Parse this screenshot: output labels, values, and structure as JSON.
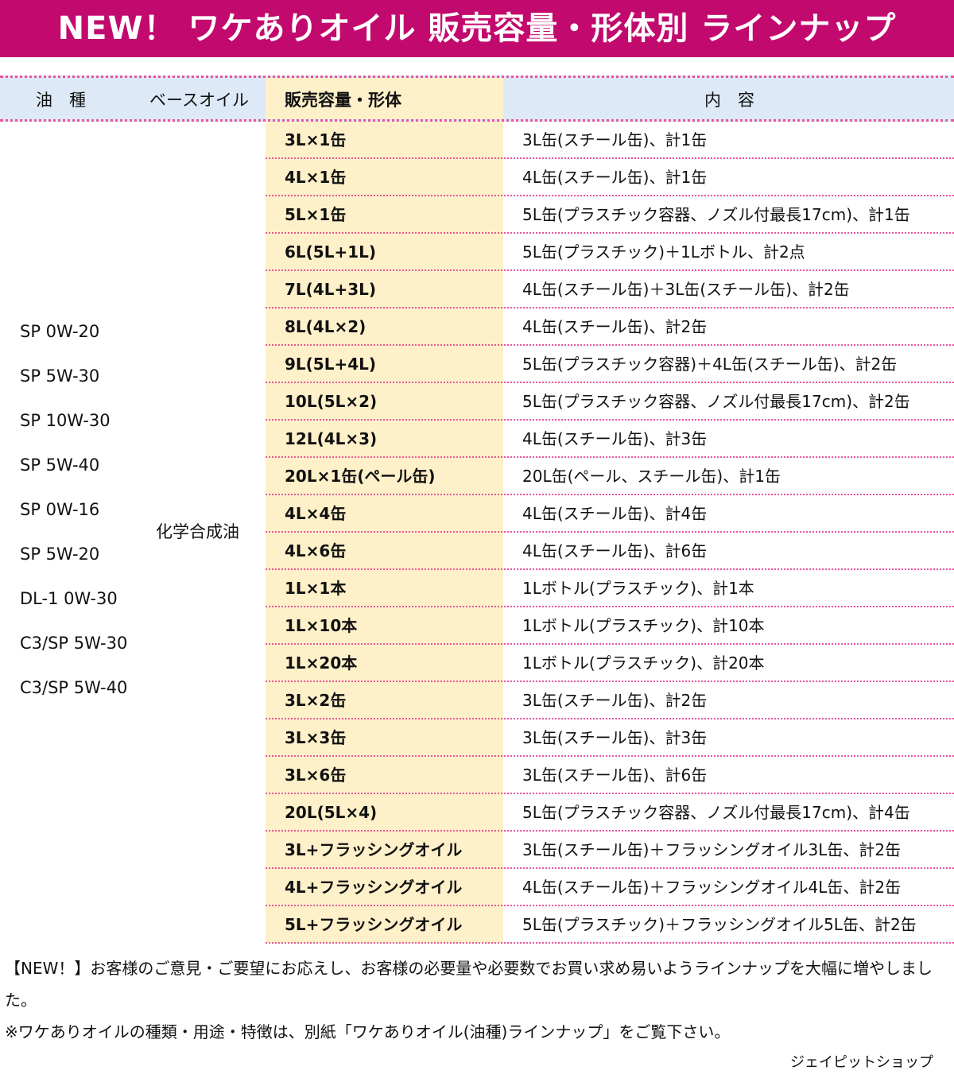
{
  "title": "NEW！ ワケありオイル 販売容量・形体別 ラインナップ",
  "headers": {
    "oil_type": "油　種",
    "base_oil": "ベースオイル",
    "capacity": "販売容量・形体",
    "contents": "内　容"
  },
  "oil_types": [
    "SP 0W-20",
    "SP 5W-30",
    "SP 10W-30",
    "SP 5W-40",
    "SP 0W-16",
    "SP 5W-20",
    "DL-1 0W-30",
    "C3/SP 5W-30",
    "C3/SP 5W-40"
  ],
  "base_oil": "化学合成油",
  "rows": [
    {
      "cap": "3L×1缶",
      "desc": "3L缶(スチール缶)、計1缶"
    },
    {
      "cap": "4L×1缶",
      "desc": "4L缶(スチール缶)、計1缶"
    },
    {
      "cap": "5L×1缶",
      "desc": "5L缶(プラスチック容器、ノズル付最長17cm)、計1缶"
    },
    {
      "cap": "6L(5L+1L)",
      "desc": "5L缶(プラスチック)＋1Lボトル、計2点"
    },
    {
      "cap": "7L(4L+3L)",
      "desc": "4L缶(スチール缶)＋3L缶(スチール缶)、計2缶"
    },
    {
      "cap": "8L(4L×2)",
      "desc": "4L缶(スチール缶)、計2缶"
    },
    {
      "cap": "9L(5L+4L)",
      "desc": "5L缶(プラスチック容器)＋4L缶(スチール缶)、計2缶"
    },
    {
      "cap": "10L(5L×2)",
      "desc": "5L缶(プラスチック容器、ノズル付最長17cm)、計2缶"
    },
    {
      "cap": "12L(4L×3)",
      "desc": "4L缶(スチール缶)、計3缶"
    },
    {
      "cap": "20L×1缶(ペール缶)",
      "desc": "20L缶(ペール、スチール缶)、計1缶"
    },
    {
      "cap": "4L×4缶",
      "desc": "4L缶(スチール缶)、計4缶"
    },
    {
      "cap": "4L×6缶",
      "desc": "4L缶(スチール缶)、計6缶"
    },
    {
      "cap": "1L×1本",
      "desc": "1Lボトル(プラスチック)、計1本"
    },
    {
      "cap": "1L×10本",
      "desc": "1Lボトル(プラスチック)、計10本"
    },
    {
      "cap": "1L×20本",
      "desc": "1Lボトル(プラスチック)、計20本"
    },
    {
      "cap": "3L×2缶",
      "desc": "3L缶(スチール缶)、計2缶"
    },
    {
      "cap": "3L×3缶",
      "desc": "3L缶(スチール缶)、計3缶"
    },
    {
      "cap": "3L×6缶",
      "desc": "3L缶(スチール缶)、計6缶"
    },
    {
      "cap": "20L(5L×4)",
      "desc": "5L缶(プラスチック容器、ノズル付最長17cm)、計4缶"
    },
    {
      "cap": "3L+フラッシングオイル",
      "desc": "3L缶(スチール缶)＋フラッシングオイル3L缶、計2缶"
    },
    {
      "cap": "4L+フラッシングオイル",
      "desc": "4L缶(スチール缶)＋フラッシングオイル4L缶、計2缶"
    },
    {
      "cap": "5L+フラッシングオイル",
      "desc": "5L缶(プラスチック)＋フラッシングオイル5L缶、計2缶"
    }
  ],
  "footnote1": "【NEW！】お客様のご意見・ご要望にお応えし、お客様の必要量や必要数でお買い求め易いようラインナップを大幅に増やしました。",
  "footnote2": "※ワケありオイルの種類・用途・特徴は、別紙「ワケありオイル(油種)ラインナップ」をご覧下さい。",
  "shop": "ジェイピットショップ",
  "colors": {
    "banner": "#c2096e",
    "header_bg": "#dde9f6",
    "capacity_bg": "#fef0c9",
    "rule": "#e8559a"
  }
}
